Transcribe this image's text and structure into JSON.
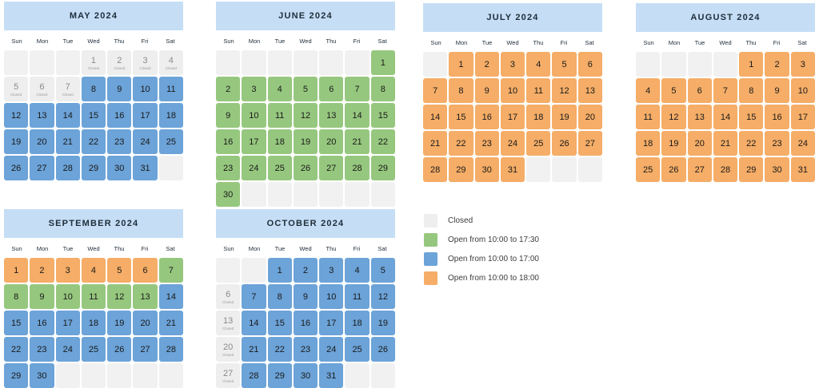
{
  "legend": [
    {
      "key": "closed",
      "label": "Closed",
      "color": "#eeeeee"
    },
    {
      "key": "green",
      "label": "Open from 10:00 to 17:30",
      "color": "#96c77e"
    },
    {
      "key": "blue",
      "label": "Open from 10:00 to 17:00",
      "color": "#6ca3d8"
    },
    {
      "key": "orange",
      "label": "Open from 10:00 to 18:00",
      "color": "#f5ad67"
    }
  ],
  "weekdays": [
    "Sun",
    "Mon",
    "Tue",
    "Wed",
    "Thu",
    "Fri",
    "Sat"
  ],
  "closed_label": "Closed",
  "months": [
    {
      "title": "MAY 2024",
      "start_weekday": 3,
      "days": 31,
      "closed": [
        1,
        2,
        3,
        4,
        5,
        6,
        7
      ],
      "green": [],
      "blue": [
        8,
        9,
        10,
        11,
        12,
        13,
        14,
        15,
        16,
        17,
        18,
        19,
        20,
        21,
        22,
        23,
        24,
        25,
        26,
        27,
        28,
        29,
        30,
        31
      ],
      "orange": []
    },
    {
      "title": "JUNE 2024",
      "start_weekday": 6,
      "days": 30,
      "closed": [],
      "green": [
        1,
        2,
        3,
        4,
        5,
        6,
        7,
        8,
        9,
        10,
        11,
        12,
        13,
        14,
        15,
        16,
        17,
        18,
        19,
        20,
        21,
        22,
        23,
        24,
        25,
        26,
        27,
        28,
        29,
        30
      ],
      "blue": [],
      "orange": []
    },
    {
      "title": "JULY 2024",
      "start_weekday": 1,
      "days": 31,
      "closed": [],
      "green": [],
      "blue": [],
      "orange": [
        1,
        2,
        3,
        4,
        5,
        6,
        7,
        8,
        9,
        10,
        11,
        12,
        13,
        14,
        15,
        16,
        17,
        18,
        19,
        20,
        21,
        22,
        23,
        24,
        25,
        26,
        27,
        28,
        29,
        30,
        31
      ]
    },
    {
      "title": "AUGUST 2024",
      "start_weekday": 4,
      "days": 31,
      "closed": [],
      "green": [],
      "blue": [],
      "orange": [
        1,
        2,
        3,
        4,
        5,
        6,
        7,
        8,
        9,
        10,
        11,
        12,
        13,
        14,
        15,
        16,
        17,
        18,
        19,
        20,
        21,
        22,
        23,
        24,
        25,
        26,
        27,
        28,
        29,
        30,
        31
      ]
    },
    {
      "title": "SEPTEMBER 2024",
      "start_weekday": 0,
      "days": 30,
      "closed": [],
      "green": [
        7,
        8,
        9,
        10,
        11,
        12,
        13
      ],
      "blue": [
        14,
        15,
        16,
        17,
        18,
        19,
        20,
        21,
        22,
        23,
        24,
        25,
        26,
        27,
        28,
        29,
        30
      ],
      "orange": [
        1,
        2,
        3,
        4,
        5,
        6
      ]
    },
    {
      "title": "OCTOBER 2024",
      "start_weekday": 2,
      "days": 31,
      "closed": [
        6,
        13,
        20,
        27
      ],
      "green": [],
      "blue": [
        1,
        2,
        3,
        4,
        5,
        7,
        8,
        9,
        10,
        11,
        12,
        14,
        15,
        16,
        17,
        18,
        19,
        21,
        22,
        23,
        24,
        25,
        26,
        28,
        29,
        30,
        31
      ],
      "orange": []
    }
  ]
}
